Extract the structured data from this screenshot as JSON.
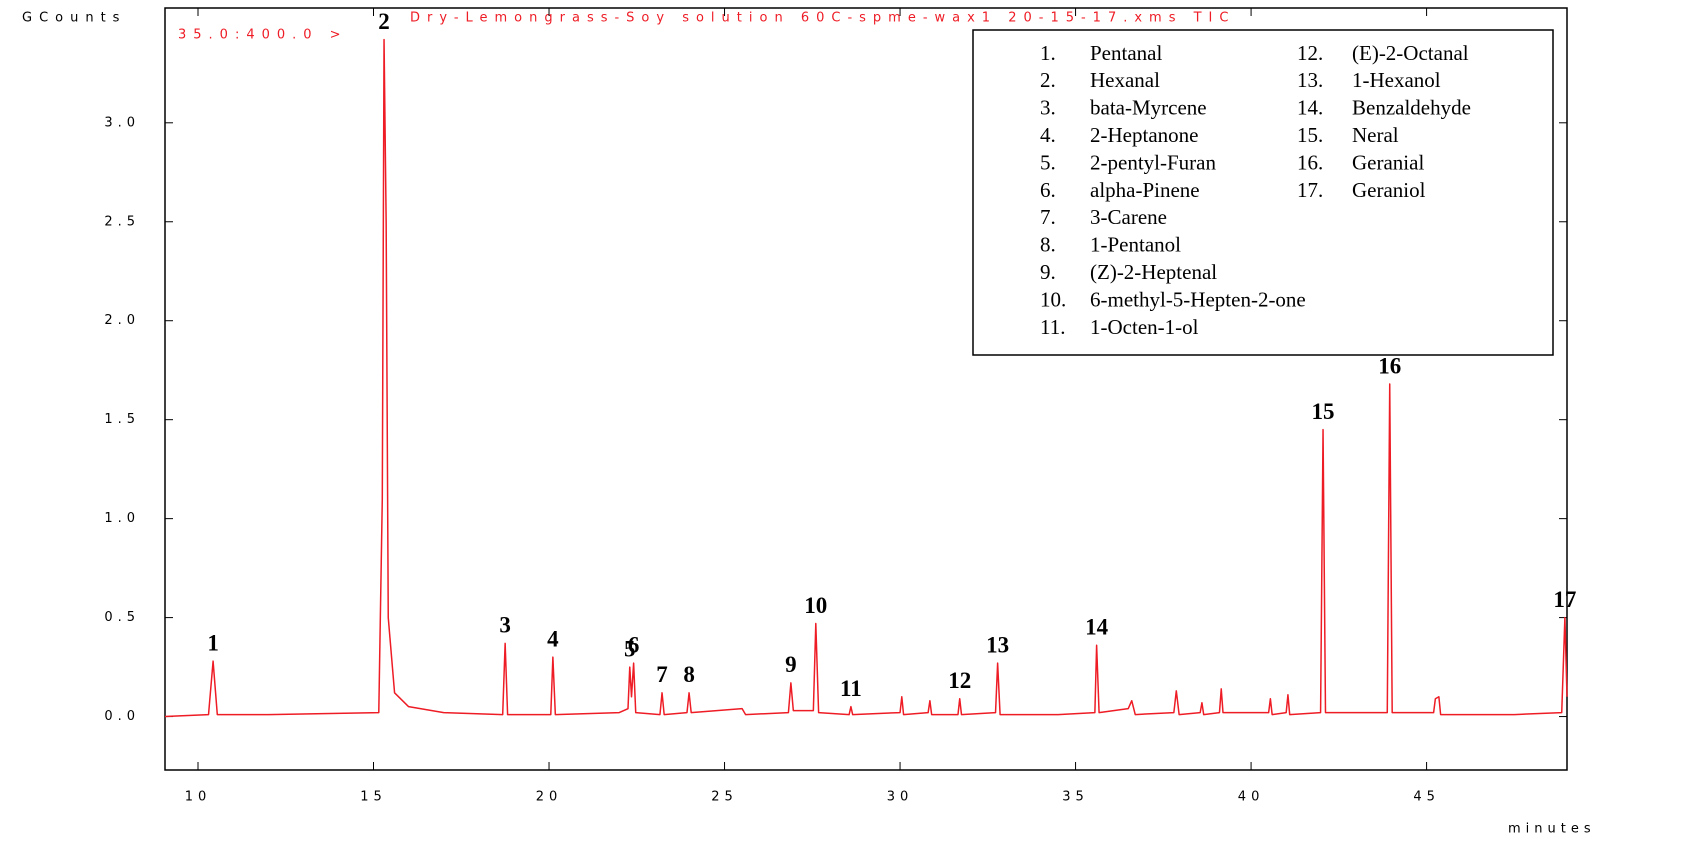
{
  "chart_data": {
    "type": "line",
    "title": "Dry-Lemongrass-Soy solution 60C-spme-wax1 20-15-17.xms TIC",
    "subtitle": "35.0:400.0 >",
    "y_label": "GCounts",
    "x_label": "minutes",
    "xlim": [
      9.06,
      49.0
    ],
    "ylim": [
      -0.27,
      3.58
    ],
    "xticks": [
      10,
      15,
      20,
      25,
      30,
      35,
      40,
      45
    ],
    "yticks": [
      {
        "value": 0,
        "label": "0.0"
      },
      0.5,
      {
        "value": 1,
        "label": "1.0"
      },
      1.5,
      {
        "value": 2,
        "label": "2.0"
      },
      2.5,
      {
        "value": 3,
        "label": "3.0"
      }
    ],
    "x": [
      9.06,
      10.3,
      10.43,
      10.55,
      12.0,
      15.15,
      15.25,
      15.3,
      15.36,
      15.42,
      15.6,
      16.0,
      17.0,
      18.68,
      18.75,
      18.82,
      20.05,
      20.11,
      20.18,
      22.0,
      22.25,
      22.3,
      22.35,
      22.41,
      22.47,
      23.16,
      23.22,
      23.28,
      23.93,
      23.99,
      24.05,
      25.5,
      25.6,
      26.82,
      26.89,
      26.96,
      27.53,
      27.6,
      27.68,
      28.55,
      28.6,
      28.65,
      30.0,
      30.05,
      30.1,
      30.8,
      30.85,
      30.9,
      31.65,
      31.7,
      31.75,
      32.72,
      32.78,
      32.85,
      34.5,
      35.55,
      35.6,
      35.67,
      36.5,
      36.6,
      36.7,
      37.8,
      37.87,
      37.95,
      38.55,
      38.6,
      38.65,
      39.1,
      39.15,
      39.2,
      40.5,
      40.55,
      40.6,
      41.0,
      41.05,
      41.1,
      41.98,
      42.05,
      42.12,
      43.88,
      43.95,
      44.02,
      45.2,
      45.25,
      45.35,
      45.4,
      47.5,
      48.85,
      48.94,
      49.0
    ],
    "series": [
      {
        "name": "TIC",
        "color": "#ee1c25",
        "values": [
          0.0,
          0.01,
          0.28,
          0.01,
          0.01,
          0.02,
          1.1,
          3.42,
          2.5,
          0.5,
          0.12,
          0.05,
          0.02,
          0.01,
          0.37,
          0.01,
          0.01,
          0.3,
          0.01,
          0.02,
          0.04,
          0.25,
          0.1,
          0.27,
          0.02,
          0.01,
          0.12,
          0.01,
          0.02,
          0.12,
          0.02,
          0.04,
          0.01,
          0.02,
          0.17,
          0.03,
          0.03,
          0.47,
          0.02,
          0.01,
          0.05,
          0.01,
          0.02,
          0.1,
          0.01,
          0.02,
          0.08,
          0.01,
          0.01,
          0.09,
          0.01,
          0.02,
          0.27,
          0.01,
          0.01,
          0.02,
          0.36,
          0.02,
          0.04,
          0.08,
          0.01,
          0.02,
          0.13,
          0.01,
          0.02,
          0.07,
          0.01,
          0.02,
          0.14,
          0.02,
          0.02,
          0.09,
          0.01,
          0.02,
          0.11,
          0.01,
          0.02,
          1.45,
          0.02,
          0.02,
          1.68,
          0.02,
          0.02,
          0.09,
          0.1,
          0.01,
          0.01,
          0.02,
          0.5,
          0.1
        ]
      }
    ],
    "annotations": [
      {
        "label": "1",
        "x": 10.43,
        "y": 0.28
      },
      {
        "label": "2",
        "x": 15.3,
        "y": 3.42
      },
      {
        "label": "3",
        "x": 18.75,
        "y": 0.37
      },
      {
        "label": "4",
        "x": 20.11,
        "y": 0.3
      },
      {
        "label": "5",
        "x": 22.3,
        "y": 0.25
      },
      {
        "label": "6",
        "x": 22.41,
        "y": 0.27
      },
      {
        "label": "7",
        "x": 23.22,
        "y": 0.12
      },
      {
        "label": "8",
        "x": 23.99,
        "y": 0.12
      },
      {
        "label": "9",
        "x": 26.89,
        "y": 0.17
      },
      {
        "label": "10",
        "x": 27.6,
        "y": 0.47
      },
      {
        "label": "11",
        "x": 28.6,
        "y": 0.05
      },
      {
        "label": "12",
        "x": 31.7,
        "y": 0.09
      },
      {
        "label": "13",
        "x": 32.78,
        "y": 0.27
      },
      {
        "label": "14",
        "x": 35.6,
        "y": 0.36
      },
      {
        "label": "15",
        "x": 42.05,
        "y": 1.45
      },
      {
        "label": "16",
        "x": 43.95,
        "y": 1.68
      },
      {
        "label": "17",
        "x": 48.94,
        "y": 0.5
      }
    ],
    "legend_items": [
      {
        "number": "1.",
        "name": "Pentanal"
      },
      {
        "number": "2.",
        "name": "Hexanal"
      },
      {
        "number": "3.",
        "name": "bata-Myrcene"
      },
      {
        "number": "4.",
        "name": "2-Heptanone"
      },
      {
        "number": "5.",
        "name": "2-pentyl-Furan"
      },
      {
        "number": "6.",
        "name": "alpha-Pinene"
      },
      {
        "number": "7.",
        "name": "3-Carene"
      },
      {
        "number": "8.",
        "name": "1-Pentanol"
      },
      {
        "number": "9.",
        "name": "(Z)-2-Heptenal"
      },
      {
        "number": "10.",
        "name": "6-methyl-5-Hepten-2-one"
      },
      {
        "number": "11.",
        "name": "1-Octen-1-ol"
      },
      {
        "number": "12.",
        "name": "(E)-2-Octanal"
      },
      {
        "number": "13.",
        "name": "1-Hexanol"
      },
      {
        "number": "14.",
        "name": "Benzaldehyde"
      },
      {
        "number": "15.",
        "name": "Neral"
      },
      {
        "number": "16.",
        "name": "Geranial"
      },
      {
        "number": "17.",
        "name": "Geraniol"
      }
    ]
  }
}
